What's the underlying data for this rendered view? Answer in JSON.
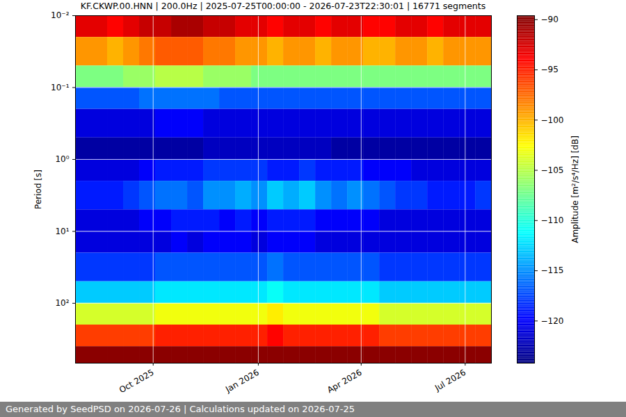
{
  "chart_data": {
    "type": "heatmap",
    "title": "KF.CKWP.00.HNN | 200.0Hz | 2025-07-25T00:00:00 - 2026-07-23T22:30:01 | 16771 segments",
    "caption": "Generated by SeedPSD on 2026-07-26 | Calculations updated on 2026-07-25",
    "y_label": "Period [s]",
    "log": "y",
    "grid": true,
    "color": "jet",
    "xlim": [
      "2025-07-25T00:00:00",
      "2026-07-23T22:30:01"
    ],
    "xticks": [
      {
        "value": "2025-10-01",
        "label": "Oct 2025"
      },
      {
        "value": "2026-01-01",
        "label": "Jan 2026"
      },
      {
        "value": "2026-04-01",
        "label": "Apr 2026"
      },
      {
        "value": "2026-07-01",
        "label": "Jul 2026"
      }
    ],
    "ylim": [
      0.01,
      680
    ],
    "yticks": [
      {
        "value": 0.01,
        "label": "10⁻²"
      },
      {
        "value": 0.1,
        "label": "10⁻¹"
      },
      {
        "value": 1,
        "label": "10⁰"
      },
      {
        "value": 10,
        "label": "10¹"
      },
      {
        "value": 100,
        "label": "10²"
      }
    ],
    "cells": {
      "x": [
        "2025-07-25",
        "2025-08-08",
        "2025-08-22",
        "2025-09-05",
        "2025-09-19",
        "2025-10-03",
        "2025-10-17",
        "2025-10-31",
        "2025-11-14",
        "2025-11-28",
        "2025-12-12",
        "2025-12-26",
        "2026-01-09",
        "2026-01-23",
        "2026-02-06",
        "2026-02-20",
        "2026-03-06",
        "2026-03-20",
        "2026-04-03",
        "2026-04-17",
        "2026-05-01",
        "2026-05-15",
        "2026-05-29",
        "2026-06-12",
        "2026-06-26",
        "2026-07-10"
      ],
      "period_bins": [
        0.01,
        0.02,
        0.05,
        0.1,
        0.2,
        0.5,
        1,
        2,
        5,
        10,
        20,
        50,
        100,
        200,
        400,
        680
      ],
      "values": [
        [
          -93,
          -93,
          -94,
          -93,
          -92,
          -92,
          -91,
          -91,
          -92,
          -92,
          -93,
          -93,
          -94,
          -93,
          -93,
          -94,
          -93,
          -93,
          -94,
          -94,
          -93,
          -93,
          -94,
          -93,
          -93,
          -93
        ],
        [
          -99,
          -99,
          -100,
          -99,
          -98,
          -97,
          -97,
          -97,
          -98,
          -98,
          -99,
          -99,
          -100,
          -99,
          -99,
          -100,
          -99,
          -99,
          -100,
          -100,
          -99,
          -99,
          -100,
          -99,
          -99,
          -99
        ],
        [
          -107,
          -107,
          -107,
          -106,
          -106,
          -105,
          -105,
          -105,
          -106,
          -106,
          -106,
          -107,
          -107,
          -107,
          -107,
          -107,
          -107,
          -107,
          -107,
          -107,
          -107,
          -107,
          -107,
          -107,
          -107,
          -107
        ],
        [
          -117,
          -117,
          -117,
          -117,
          -116,
          -116,
          -116,
          -116,
          -116,
          -117,
          -117,
          -117,
          -117,
          -117,
          -117,
          -117,
          -117,
          -117,
          -117,
          -117,
          -117,
          -117,
          -117,
          -117,
          -117,
          -117
        ],
        [
          -121,
          -121,
          -121,
          -121,
          -121,
          -120,
          -120,
          -120,
          -121,
          -121,
          -121,
          -121,
          -121,
          -121,
          -121,
          -121,
          -121,
          -121,
          -121,
          -121,
          -121,
          -121,
          -121,
          -121,
          -121,
          -121
        ],
        [
          -123,
          -123,
          -123,
          -123,
          -123,
          -123,
          -123,
          -123,
          -122,
          -122,
          -122,
          -122,
          -122,
          -122,
          -122,
          -122,
          -123,
          -123,
          -123,
          -123,
          -123,
          -123,
          -123,
          -123,
          -123,
          -123
        ],
        [
          -121,
          -121,
          -121,
          -121,
          -120,
          -119,
          -119,
          -119,
          -118,
          -118,
          -118,
          -118,
          -119,
          -119,
          -118,
          -119,
          -119,
          -119,
          -120,
          -120,
          -120,
          -121,
          -121,
          -121,
          -121,
          -121
        ],
        [
          -119,
          -119,
          -119,
          -118,
          -117,
          -116,
          -116,
          -117,
          -115,
          -115,
          -114,
          -115,
          -113,
          -114,
          -113,
          -115,
          -116,
          -115,
          -116,
          -117,
          -118,
          -118,
          -119,
          -119,
          -119,
          -118
        ],
        [
          -121,
          -121,
          -121,
          -121,
          -120,
          -120,
          -119,
          -119,
          -119,
          -120,
          -119,
          -120,
          -119,
          -119,
          -119,
          -120,
          -120,
          -120,
          -120,
          -121,
          -121,
          -121,
          -121,
          -121,
          -121,
          -121
        ],
        [
          -121,
          -121,
          -121,
          -121,
          -121,
          -121,
          -120,
          -121,
          -120,
          -120,
          -120,
          -121,
          -120,
          -120,
          -120,
          -121,
          -121,
          -121,
          -121,
          -121,
          -121,
          -121,
          -121,
          -121,
          -121,
          -121
        ],
        [
          -118,
          -118,
          -118,
          -118,
          -118,
          -117,
          -117,
          -117,
          -117,
          -117,
          -117,
          -117,
          -116,
          -117,
          -117,
          -117,
          -117,
          -117,
          -117,
          -118,
          -118,
          -118,
          -118,
          -118,
          -118,
          -118
        ],
        [
          -113,
          -113,
          -113,
          -113,
          -113,
          -112,
          -112,
          -112,
          -112,
          -112,
          -112,
          -112,
          -111,
          -112,
          -112,
          -112,
          -112,
          -112,
          -112,
          -113,
          -113,
          -113,
          -113,
          -113,
          -113,
          -113
        ],
        [
          -104,
          -104,
          -104,
          -104,
          -104,
          -103,
          -103,
          -103,
          -103,
          -103,
          -103,
          -103,
          -102,
          -103,
          -103,
          -103,
          -103,
          -103,
          -103,
          -104,
          -104,
          -104,
          -104,
          -104,
          -104,
          -104
        ],
        [
          -96,
          -96,
          -96,
          -96,
          -96,
          -95,
          -95,
          -95,
          -95,
          -95,
          -95,
          -95,
          -94,
          -95,
          -95,
          -95,
          -95,
          -95,
          -95,
          -96,
          -96,
          -96,
          -96,
          -96,
          -96,
          -96
        ],
        [
          -90,
          -90,
          -90,
          -90,
          -90,
          -90,
          -90,
          -90,
          -90,
          -90,
          -90,
          -90,
          -90,
          -90,
          -90,
          -90,
          -90,
          -90,
          -90,
          -90,
          -90,
          -90,
          -90,
          -90,
          -90,
          -90
        ]
      ]
    },
    "colorbar": {
      "label": "Amplitude [m²/s⁴/Hz] [dB]",
      "range": [
        -124.2,
        -89.6
      ],
      "ticks": [
        -120,
        -115,
        -110,
        -105,
        -100,
        -95,
        -90
      ]
    }
  }
}
